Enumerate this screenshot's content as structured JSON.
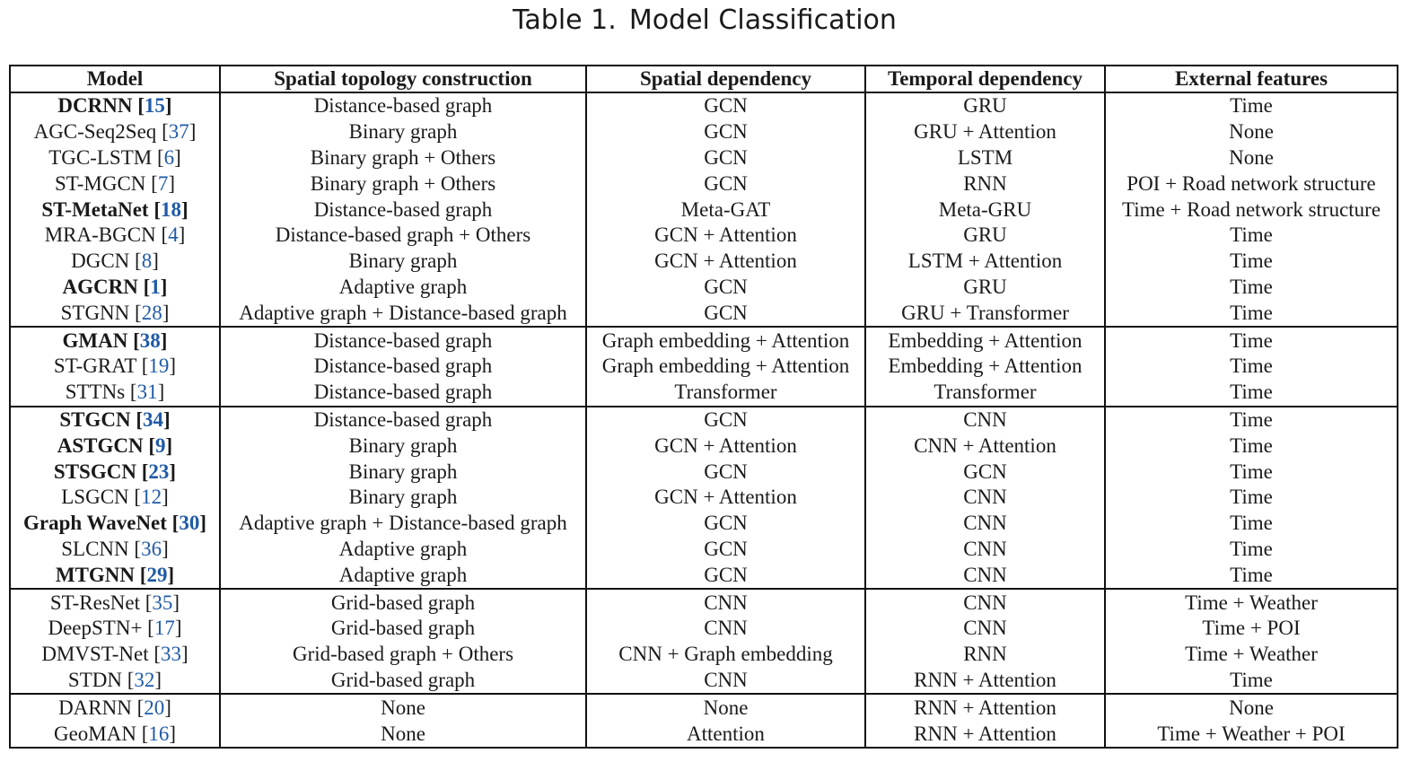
{
  "caption": {
    "label": "Table 1.",
    "title": "Model Classification"
  },
  "headers": [
    "Model",
    "Spatial topology construction",
    "Spatial dependency",
    "Temporal dependency",
    "External features"
  ],
  "groups": [
    [
      {
        "model": "DCRNN",
        "ref": "15",
        "bold": true,
        "topology": "Distance-based graph",
        "spatial": "GCN",
        "temporal": "GRU",
        "external": "Time"
      },
      {
        "model": "AGC-Seq2Seq",
        "ref": "37",
        "bold": false,
        "topology": "Binary graph",
        "spatial": "GCN",
        "temporal": "GRU + Attention",
        "external": "None"
      },
      {
        "model": "TGC-LSTM",
        "ref": "6",
        "bold": false,
        "topology": "Binary graph + Others",
        "spatial": "GCN",
        "temporal": "LSTM",
        "external": "None"
      },
      {
        "model": "ST-MGCN",
        "ref": "7",
        "bold": false,
        "topology": "Binary graph + Others",
        "spatial": "GCN",
        "temporal": "RNN",
        "external": "POI + Road network structure"
      },
      {
        "model": "ST-MetaNet",
        "ref": "18",
        "bold": true,
        "topology": "Distance-based graph",
        "spatial": "Meta-GAT",
        "temporal": "Meta-GRU",
        "external": "Time + Road network structure"
      },
      {
        "model": "MRA-BGCN",
        "ref": "4",
        "bold": false,
        "topology": "Distance-based graph + Others",
        "spatial": "GCN + Attention",
        "temporal": "GRU",
        "external": "Time"
      },
      {
        "model": "DGCN",
        "ref": "8",
        "bold": false,
        "topology": "Binary graph",
        "spatial": "GCN + Attention",
        "temporal": "LSTM + Attention",
        "external": "Time"
      },
      {
        "model": "AGCRN",
        "ref": "1",
        "bold": true,
        "topology": "Adaptive graph",
        "spatial": "GCN",
        "temporal": "GRU",
        "external": "Time"
      },
      {
        "model": "STGNN",
        "ref": "28",
        "bold": false,
        "topology": "Adaptive graph + Distance-based graph",
        "spatial": "GCN",
        "temporal": "GRU + Transformer",
        "external": "Time"
      }
    ],
    [
      {
        "model": "GMAN",
        "ref": "38",
        "bold": true,
        "topology": "Distance-based graph",
        "spatial": "Graph embedding + Attention",
        "temporal": "Embedding + Attention",
        "external": "Time"
      },
      {
        "model": "ST-GRAT",
        "ref": "19",
        "bold": false,
        "topology": "Distance-based graph",
        "spatial": "Graph embedding + Attention",
        "temporal": "Embedding + Attention",
        "external": "Time"
      },
      {
        "model": "STTNs",
        "ref": "31",
        "bold": false,
        "topology": "Distance-based graph",
        "spatial": "Transformer",
        "temporal": "Transformer",
        "external": "Time"
      }
    ],
    [
      {
        "model": "STGCN",
        "ref": "34",
        "bold": true,
        "topology": "Distance-based graph",
        "spatial": "GCN",
        "temporal": "CNN",
        "external": "Time"
      },
      {
        "model": "ASTGCN",
        "ref": "9",
        "bold": true,
        "topology": "Binary graph",
        "spatial": "GCN + Attention",
        "temporal": "CNN + Attention",
        "external": "Time"
      },
      {
        "model": "STSGCN",
        "ref": "23",
        "bold": true,
        "topology": "Binary graph",
        "spatial": "GCN",
        "temporal": "GCN",
        "external": "Time"
      },
      {
        "model": "LSGCN",
        "ref": "12",
        "bold": false,
        "topology": "Binary graph",
        "spatial": "GCN + Attention",
        "temporal": "CNN",
        "external": "Time"
      },
      {
        "model": "Graph WaveNet",
        "ref": "30",
        "bold": true,
        "topology": "Adaptive graph + Distance-based graph",
        "spatial": "GCN",
        "temporal": "CNN",
        "external": "Time"
      },
      {
        "model": "SLCNN",
        "ref": "36",
        "bold": false,
        "topology": "Adaptive graph",
        "spatial": "GCN",
        "temporal": "CNN",
        "external": "Time"
      },
      {
        "model": "MTGNN",
        "ref": "29",
        "bold": true,
        "topology": "Adaptive graph",
        "spatial": "GCN",
        "temporal": "CNN",
        "external": "Time"
      }
    ],
    [
      {
        "model": "ST-ResNet",
        "ref": "35",
        "bold": false,
        "topology": "Grid-based graph",
        "spatial": "CNN",
        "temporal": "CNN",
        "external": "Time + Weather"
      },
      {
        "model": "DeepSTN+",
        "ref": "17",
        "bold": false,
        "topology": "Grid-based graph",
        "spatial": "CNN",
        "temporal": "CNN",
        "external": "Time + POI"
      },
      {
        "model": "DMVST-Net",
        "ref": "33",
        "bold": false,
        "topology": "Grid-based graph + Others",
        "spatial": "CNN + Graph embedding",
        "temporal": "RNN",
        "external": "Time + Weather"
      },
      {
        "model": "STDN",
        "ref": "32",
        "bold": false,
        "topology": "Grid-based graph",
        "spatial": "CNN",
        "temporal": "RNN + Attention",
        "external": "Time"
      }
    ],
    [
      {
        "model": "DARNN",
        "ref": "20",
        "bold": false,
        "topology": "None",
        "spatial": "None",
        "temporal": "RNN + Attention",
        "external": "None"
      },
      {
        "model": "GeoMAN",
        "ref": "16",
        "bold": false,
        "topology": "None",
        "spatial": "Attention",
        "temporal": "RNN + Attention",
        "external": "Time + Weather + POI"
      }
    ]
  ]
}
